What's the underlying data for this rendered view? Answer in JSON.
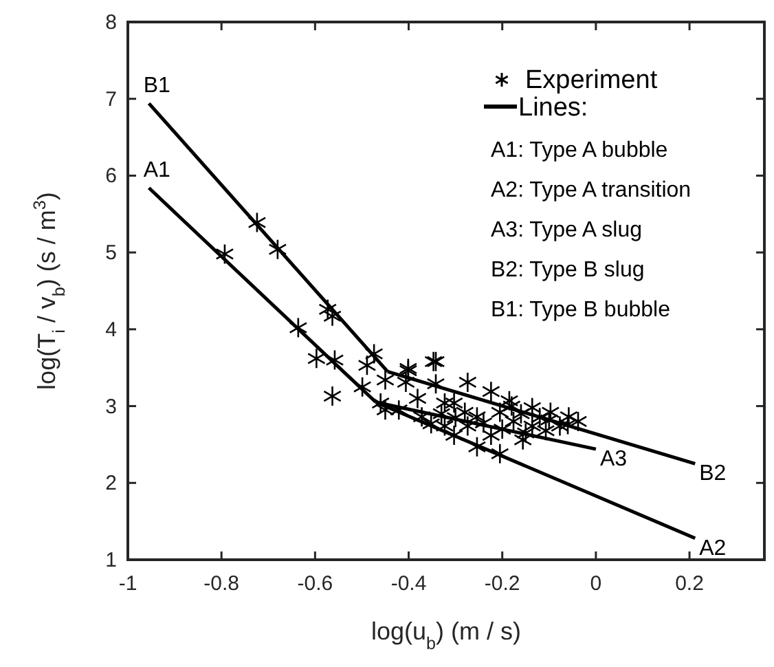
{
  "chart_data": {
    "type": "line",
    "xlabel": "log(u$_{b}$) (m / s)",
    "ylabel": "log(T$_{i}$ / v$_{b}$) (s / m$^{3}$)",
    "xlim": [
      -1,
      0.36
    ],
    "xticks": [
      -1,
      -0.8,
      -0.6,
      -0.4,
      -0.2,
      0,
      0.2
    ],
    "ylim": [
      1,
      8
    ],
    "yticks": [
      1,
      2,
      3,
      4,
      5,
      6,
      7,
      8
    ],
    "grid": false,
    "legend": "top right",
    "annotations": [
      "Lines:",
      "A1: Type A bubble",
      "A2: Type A transition",
      "A3: Type A slug",
      "B2: Type B slug",
      "B1: Type B bubble"
    ],
    "series": [
      {
        "name": "Experiment",
        "type": "scatter",
        "marker": "cross",
        "color": "#000000",
        "x": [
          -0.724,
          -0.68,
          -0.793,
          -0.573,
          -0.563,
          -0.636,
          -0.597,
          -0.558,
          -0.563,
          -0.474,
          -0.489,
          -0.45,
          -0.499,
          -0.401,
          -0.406,
          -0.342,
          -0.342,
          -0.46,
          -0.421,
          -0.372,
          -0.323,
          -0.381,
          -0.303,
          -0.401,
          -0.347,
          -0.274,
          -0.224,
          -0.185,
          -0.136,
          -0.097,
          -0.058,
          -0.038,
          -0.107,
          -0.156,
          -0.205,
          -0.254,
          -0.303,
          -0.352,
          -0.45,
          -0.254,
          -0.176,
          -0.323,
          -0.205,
          -0.136,
          -0.224,
          -0.274,
          -0.077,
          -0.12,
          -0.16,
          -0.1,
          -0.06,
          -0.24,
          -0.28,
          -0.2,
          -0.15,
          -0.3,
          -0.33,
          -0.18
        ],
        "values": [
          5.39,
          5.04,
          4.98,
          4.26,
          4.17,
          4.02,
          3.62,
          3.6,
          3.13,
          3.68,
          3.53,
          3.34,
          3.25,
          3.49,
          3.31,
          3.58,
          3.29,
          3.04,
          2.95,
          2.86,
          2.74,
          3.1,
          3.04,
          3.46,
          3.58,
          3.31,
          3.19,
          3.07,
          2.98,
          2.92,
          2.86,
          2.8,
          2.68,
          2.56,
          2.38,
          2.47,
          2.62,
          2.77,
          2.95,
          2.86,
          2.8,
          3.04,
          2.92,
          2.74,
          2.62,
          2.74,
          2.74,
          2.85,
          2.9,
          2.82,
          2.76,
          2.78,
          2.92,
          2.7,
          2.65,
          2.85,
          2.9,
          3.0
        ]
      },
      {
        "name": "B1",
        "color": "#000000",
        "x": [
          -0.955,
          -0.445
        ],
        "values": [
          6.94,
          3.45
        ]
      },
      {
        "name": "B2",
        "color": "#000000",
        "x": [
          -0.445,
          0.212
        ],
        "values": [
          3.45,
          2.25
        ]
      },
      {
        "name": "A1",
        "color": "#000000",
        "x": [
          -0.955,
          -0.47
        ],
        "values": [
          5.84,
          3.05
        ]
      },
      {
        "name": "A2",
        "color": "#000000",
        "x": [
          -0.47,
          0.212
        ],
        "values": [
          3.05,
          1.28
        ]
      },
      {
        "name": "A3",
        "color": "#000000",
        "x": [
          -0.47,
          0.0
        ],
        "values": [
          3.05,
          2.44
        ]
      }
    ]
  }
}
